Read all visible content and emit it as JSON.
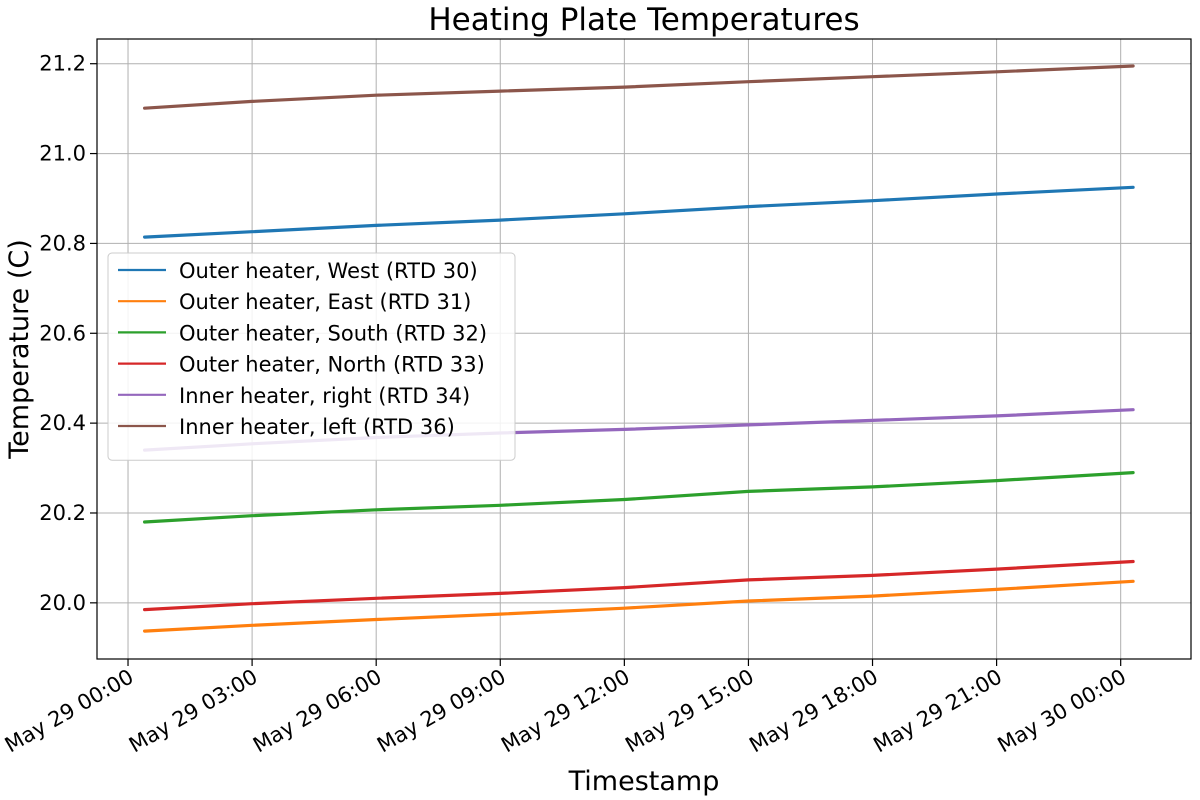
{
  "chart_data": {
    "type": "line",
    "title": "Heating Plate Temperatures",
    "xlabel": "Timestamp",
    "ylabel": "Temperature (C)",
    "x_ticks": [
      "May 29 00:00",
      "May 29 03:00",
      "May 29 06:00",
      "May 29 09:00",
      "May 29 12:00",
      "May 29 15:00",
      "May 29 18:00",
      "May 29 21:00",
      "May 30 00:00"
    ],
    "x_tick_hours": [
      0,
      3,
      6,
      9,
      12,
      15,
      18,
      21,
      24
    ],
    "xlim_hours": [
      -0.75,
      25.7
    ],
    "y_ticks": [
      20.0,
      20.2,
      20.4,
      20.6,
      20.8,
      21.0,
      21.2
    ],
    "y_tick_labels": [
      "20.0",
      "20.2",
      "20.4",
      "20.6",
      "20.8",
      "21.0",
      "21.2"
    ],
    "ylim": [
      19.875,
      21.255
    ],
    "grid": true,
    "legend_position": "center-left",
    "series": [
      {
        "name": "Outer heater, West (RTD 30)",
        "color": "#1f77b4",
        "x_hours": [
          0.4,
          3,
          6,
          9,
          12,
          15,
          18,
          21,
          24.3
        ],
        "values": [
          20.814,
          20.826,
          20.84,
          20.852,
          20.866,
          20.882,
          20.895,
          20.91,
          20.925
        ]
      },
      {
        "name": "Outer heater, East (RTD 31)",
        "color": "#ff7f0e",
        "x_hours": [
          0.4,
          3,
          6,
          9,
          12,
          15,
          18,
          21,
          24.3
        ],
        "values": [
          19.937,
          19.95,
          19.963,
          19.975,
          19.988,
          20.004,
          20.015,
          20.03,
          20.048
        ]
      },
      {
        "name": "Outer heater, South (RTD 32)",
        "color": "#2ca02c",
        "x_hours": [
          0.4,
          3,
          6,
          9,
          12,
          15,
          18,
          21,
          24.3
        ],
        "values": [
          20.18,
          20.194,
          20.207,
          20.217,
          20.23,
          20.248,
          20.258,
          20.272,
          20.29
        ]
      },
      {
        "name": "Outer heater, North (RTD 33)",
        "color": "#d62728",
        "x_hours": [
          0.4,
          3,
          6,
          9,
          12,
          15,
          18,
          21,
          24.3
        ],
        "values": [
          19.985,
          19.998,
          20.01,
          20.021,
          20.034,
          20.051,
          20.061,
          20.075,
          20.092
        ]
      },
      {
        "name": "Inner heater, right (RTD 34)",
        "color": "#9467bd",
        "x_hours": [
          0.4,
          3,
          6,
          9,
          12,
          15,
          18,
          21,
          24.3
        ],
        "values": [
          20.34,
          20.354,
          20.368,
          20.378,
          20.386,
          20.396,
          20.406,
          20.416,
          20.43
        ]
      },
      {
        "name": "Inner heater, left (RTD 36)",
        "color": "#8c564b",
        "x_hours": [
          0.4,
          3,
          6,
          9,
          12,
          15,
          18,
          21,
          24.3
        ],
        "values": [
          21.101,
          21.116,
          21.13,
          21.139,
          21.148,
          21.16,
          21.171,
          21.182,
          21.195
        ]
      }
    ]
  }
}
